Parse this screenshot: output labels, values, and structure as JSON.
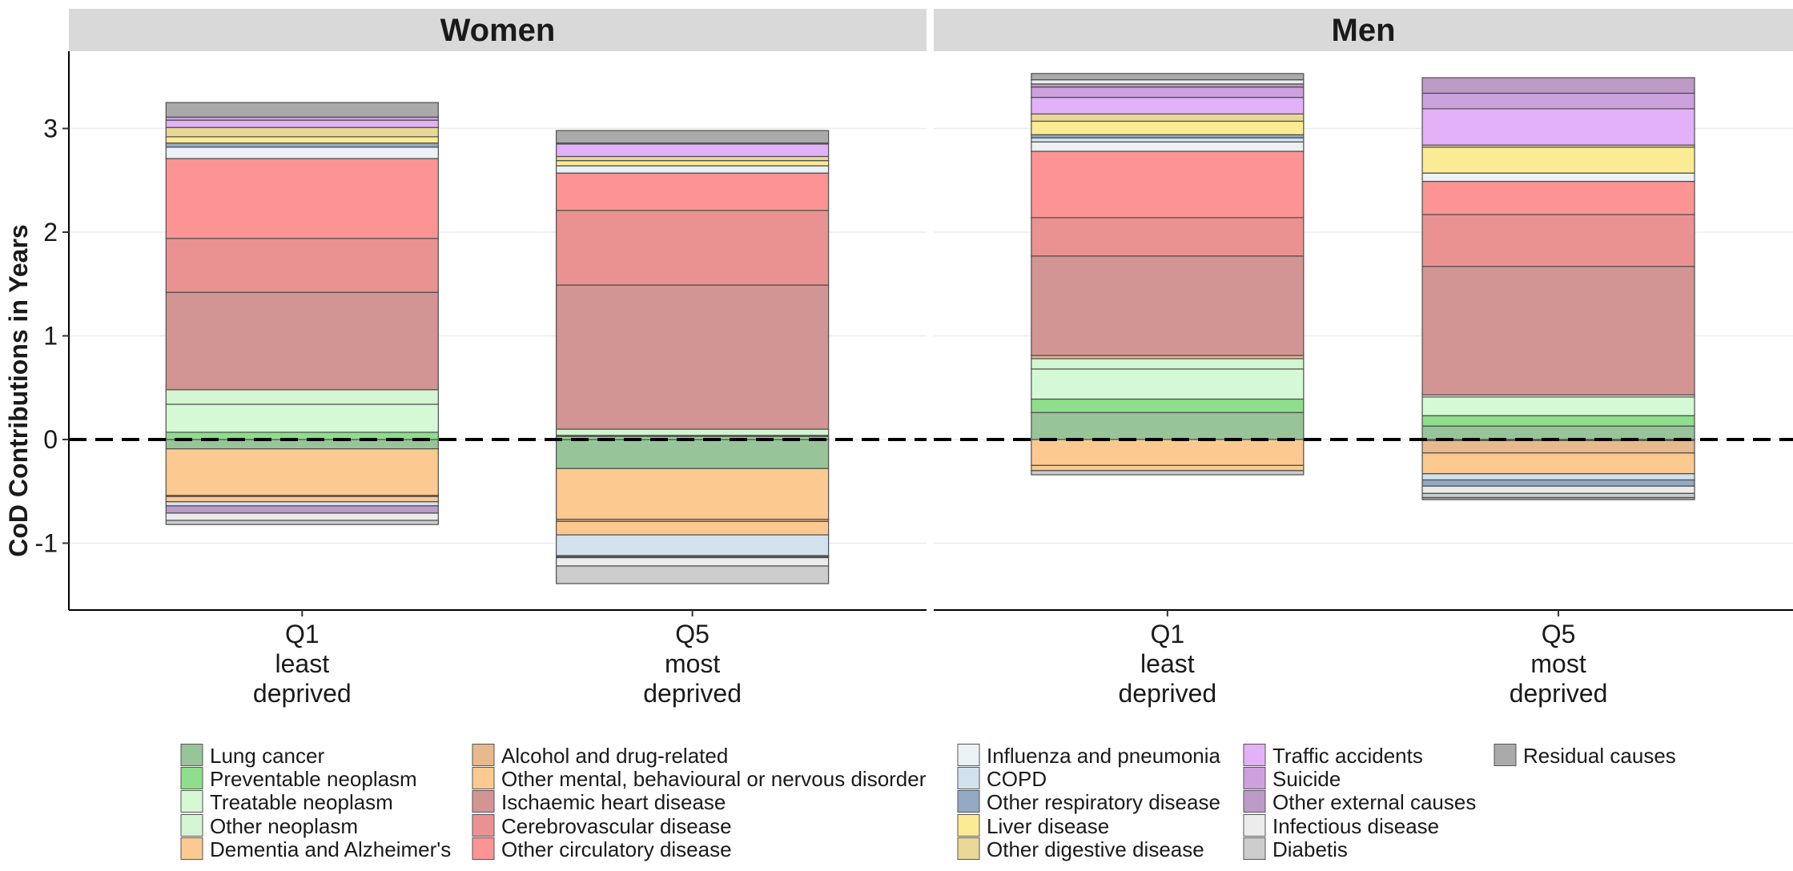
{
  "chart_data": {
    "type": "bar",
    "stacked": true,
    "diverging": true,
    "ylabel": "CoD Contributions in Years",
    "ylim": [
      -1.65,
      3.75
    ],
    "yticks": [
      -1,
      0,
      1,
      2,
      3
    ],
    "yticklabels": [
      "-1",
      "0",
      "1",
      "2",
      "3"
    ],
    "grid": true,
    "reference_line": {
      "y": 0,
      "style": "dashed"
    },
    "legend_position": "bottom",
    "categories": [
      {
        "lines": [
          "Q1",
          "least",
          "deprived"
        ]
      },
      {
        "lines": [
          "Q5",
          "most",
          "deprived"
        ]
      }
    ],
    "causes": [
      {
        "name": "Lung cancer",
        "color": "#98c49a"
      },
      {
        "name": "Preventable neoplasm",
        "color": "#8ede8c"
      },
      {
        "name": "Treatable neoplasm",
        "color": "#d5f8d5"
      },
      {
        "name": "Other neoplasm",
        "color": "#d3f5d1"
      },
      {
        "name": "Dementia and Alzheimer's",
        "color": "#fcc990"
      },
      {
        "name": "Alcohol and drug-related",
        "color": "#e8b98c"
      },
      {
        "name": "Other mental, behavioural or nervous disorder",
        "color": "#fcc990"
      },
      {
        "name": "Ischaemic heart disease",
        "color": "#d39494"
      },
      {
        "name": "Cerebrovascular disease",
        "color": "#ea9292"
      },
      {
        "name": "Other circulatory disease",
        "color": "#fd9494"
      },
      {
        "name": "Influenza and pneumonia",
        "color": "#ebf1f5"
      },
      {
        "name": "COPD",
        "color": "#d1e2ee"
      },
      {
        "name": "Other respiratory disease",
        "color": "#94a9c3"
      },
      {
        "name": "Liver disease",
        "color": "#faeb94"
      },
      {
        "name": "Other digestive disease",
        "color": "#e8d796"
      },
      {
        "name": "Traffic accidents",
        "color": "#e3b1f8"
      },
      {
        "name": "Suicide",
        "color": "#cda1de"
      },
      {
        "name": "Other external causes",
        "color": "#bc9bc6"
      },
      {
        "name": "Infectious disease",
        "color": "#ececec"
      },
      {
        "name": "Diabetis",
        "color": "#cccccc"
      },
      {
        "name": "Residual causes",
        "color": "#aaaaaa"
      }
    ],
    "panels": [
      {
        "title": "Women",
        "bars": [
          {
            "category": "Q1 least deprived",
            "values": [
              -0.09,
              0.07,
              0.27,
              0.14,
              -0.45,
              -0.01,
              -0.05,
              0.94,
              0.52,
              0.77,
              0.11,
              -0.04,
              0.04,
              0.06,
              0.09,
              0.07,
              0.03,
              -0.07,
              -0.07,
              -0.04,
              0.14
            ]
          },
          {
            "category": "Q5 most deprived",
            "values": [
              -0.28,
              0.03,
              0.01,
              0.06,
              -0.49,
              -0.02,
              -0.13,
              1.39,
              0.72,
              0.36,
              0.07,
              -0.2,
              -0.01,
              0.05,
              0.04,
              0.12,
              0.01,
              -0.01,
              -0.08,
              -0.17,
              0.12
            ]
          }
        ]
      },
      {
        "title": "Men",
        "bars": [
          {
            "category": "Q1 least deprived",
            "values": [
              0.26,
              0.13,
              0.29,
              0.1,
              -0.25,
              0.03,
              -0.05,
              0.96,
              0.37,
              0.64,
              0.09,
              0.04,
              0.03,
              0.13,
              0.07,
              0.16,
              0.1,
              0.03,
              0.04,
              -0.04,
              0.06
            ]
          },
          {
            "category": "Q5 most deprived",
            "values": [
              0.13,
              0.1,
              0.18,
              0.02,
              -0.01,
              -0.12,
              -0.2,
              1.24,
              0.5,
              0.32,
              0.08,
              -0.06,
              -0.06,
              0.25,
              0.02,
              0.35,
              0.15,
              0.15,
              -0.07,
              -0.04,
              -0.02
            ]
          }
        ]
      }
    ]
  }
}
